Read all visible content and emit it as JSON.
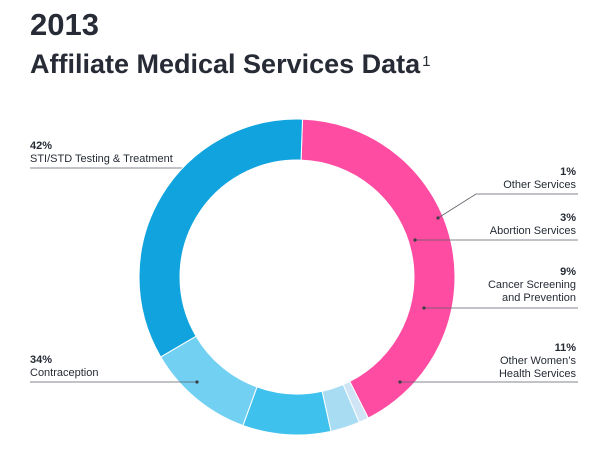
{
  "title": {
    "year": "2013",
    "main": "Affiliate Medical Services Data",
    "footnote": "1"
  },
  "chart_data": {
    "type": "pie",
    "donut": true,
    "title": "2013 Affiliate Medical Services Data",
    "slices": [
      {
        "label": "STI/STD Testing & Treatment",
        "label_lines": [
          "STI/STD Testing & Treatment"
        ],
        "value": 42,
        "pct_text": "42%",
        "color": "#fd4ca2"
      },
      {
        "label": "Other Services",
        "label_lines": [
          "Other Services"
        ],
        "value": 1,
        "pct_text": "1%",
        "color": "#cfe4f4"
      },
      {
        "label": "Abortion Services",
        "label_lines": [
          "Abortion Services"
        ],
        "value": 3,
        "pct_text": "3%",
        "color": "#a8dcf2"
      },
      {
        "label": "Cancer Screening and Prevention",
        "label_lines": [
          "Cancer Screening",
          "and Prevention"
        ],
        "value": 9,
        "pct_text": "9%",
        "color": "#3fc1ed"
      },
      {
        "label": "Other Women’s Health Services",
        "label_lines": [
          "Other Women’s",
          "Health Services"
        ],
        "value": 11,
        "pct_text": "11%",
        "color": "#72d0f3"
      },
      {
        "label": "Contraception",
        "label_lines": [
          "Contraception"
        ],
        "value": 34,
        "pct_text": "34%",
        "color": "#10a3dd"
      }
    ]
  }
}
